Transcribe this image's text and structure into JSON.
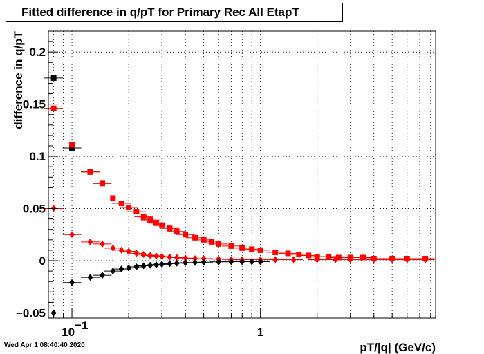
{
  "title": "Fitted difference in q/pT for Primary Rec All EtapT",
  "timestamp": "Wed Apr  1 08:40:40 2020",
  "chart_data": {
    "type": "scatter",
    "title": "Fitted difference in q/pT for Primary Rec All EtapT",
    "xlabel": "pT/|q| (GeV/c)",
    "ylabel": "difference in q/pT",
    "xscale": "log",
    "xlim": [
      0.075,
      8.5
    ],
    "ylim": [
      -0.055,
      0.22
    ],
    "grid": true,
    "x_tick_labels": [
      {
        "value": 0.1,
        "base": "10",
        "exp": "−1"
      },
      {
        "value": 1,
        "label": "1"
      }
    ],
    "y_ticks": [
      -0.05,
      0,
      0.05,
      0.1,
      0.15,
      0.2
    ],
    "y_tick_labels": [
      "−0.05",
      "0",
      "0.05",
      "0.1",
      "0.15",
      "0.2"
    ],
    "series": [
      {
        "marker": "square",
        "color": "#000000",
        "x": [
          0.08,
          0.1,
          0.125
        ],
        "y": [
          0.175,
          0.108,
          0.085
        ]
      },
      {
        "marker": "square",
        "color": "#ff0000",
        "x": [
          0.08,
          0.1,
          0.125,
          0.145,
          0.165,
          0.183,
          0.2,
          0.22,
          0.24,
          0.26,
          0.28,
          0.3,
          0.33,
          0.36,
          0.4,
          0.45,
          0.5,
          0.55,
          0.6,
          0.7,
          0.8,
          0.9,
          1.0,
          1.2,
          1.4,
          1.6,
          1.8,
          2.0,
          2.3,
          2.6,
          3.0,
          3.5,
          4.0,
          5.0,
          6.0,
          7.5
        ],
        "y": [
          0.146,
          0.111,
          0.085,
          0.074,
          0.06,
          0.055,
          0.051,
          0.047,
          0.042,
          0.039,
          0.036,
          0.034,
          0.031,
          0.028,
          0.025,
          0.022,
          0.02,
          0.018,
          0.016,
          0.014,
          0.012,
          0.011,
          0.01,
          0.008,
          0.007,
          0.006,
          0.005,
          0.004,
          0.004,
          0.003,
          0.003,
          0.003,
          0.002,
          0.002,
          0.002,
          0.002
        ]
      },
      {
        "marker": "diamond",
        "color": "#ff0000",
        "x": [
          0.08,
          0.1,
          0.125,
          0.145,
          0.165,
          0.183,
          0.2,
          0.22,
          0.24,
          0.26,
          0.28,
          0.3,
          0.33,
          0.36,
          0.4,
          0.45,
          0.5,
          0.6,
          0.7,
          0.8,
          1.0,
          1.2,
          1.5,
          2.0,
          2.5,
          3.0,
          4.0,
          5.0,
          6.0,
          7.5
        ],
        "y": [
          0.05,
          0.025,
          0.018,
          0.016,
          0.012,
          0.01,
          0.009,
          0.007,
          0.006,
          0.005,
          0.0045,
          0.004,
          0.0035,
          0.003,
          0.0025,
          0.002,
          0.002,
          0.0015,
          0.0012,
          0.001,
          0.001,
          0.001,
          0.001,
          0.001,
          0.001,
          0.001,
          0.001,
          0.001,
          0.001,
          0.001
        ]
      },
      {
        "marker": "diamond",
        "color": "#000000",
        "x": [
          0.08,
          0.1,
          0.125,
          0.145,
          0.165,
          0.183,
          0.2,
          0.22,
          0.24,
          0.26,
          0.28,
          0.3,
          0.33,
          0.36,
          0.4,
          0.45,
          0.5,
          0.6,
          0.7,
          0.8,
          0.9,
          1.0
        ],
        "y": [
          -0.05,
          -0.021,
          -0.016,
          -0.014,
          -0.01,
          -0.008,
          -0.007,
          -0.006,
          -0.005,
          -0.0045,
          -0.004,
          -0.0035,
          -0.003,
          -0.0025,
          -0.002,
          -0.0018,
          -0.0015,
          -0.0012,
          -0.001,
          -0.001,
          -0.001,
          -0.001
        ]
      }
    ]
  }
}
